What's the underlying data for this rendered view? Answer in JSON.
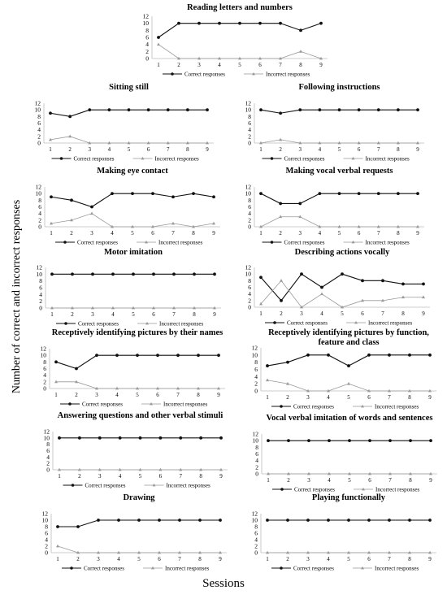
{
  "figure": {
    "y_label": "Number of correct and incorrect responses",
    "x_label": "Sessions"
  },
  "chart_data": [
    {
      "type": "line",
      "title": "Reading letters and numbers",
      "x": [
        1,
        2,
        3,
        4,
        5,
        6,
        7,
        8,
        9
      ],
      "ylim": [
        0,
        12
      ],
      "yticks": [
        0,
        2,
        4,
        6,
        8,
        10,
        12
      ],
      "series": [
        {
          "name": "Correct responses",
          "values": [
            6,
            10,
            10,
            10,
            10,
            10,
            10,
            8,
            10
          ]
        },
        {
          "name": "Incorrect responses",
          "values": [
            4,
            0,
            0,
            0,
            0,
            0,
            0,
            2,
            0
          ]
        }
      ],
      "legend": "bottom"
    },
    {
      "type": "line",
      "title": "Sitting still",
      "x": [
        1,
        2,
        3,
        4,
        5,
        6,
        7,
        8,
        9
      ],
      "ylim": [
        0,
        12
      ],
      "yticks": [
        0,
        2,
        4,
        6,
        8,
        10,
        12
      ],
      "series": [
        {
          "name": "Correct responses",
          "values": [
            9,
            8,
            10,
            10,
            10,
            10,
            10,
            10,
            10
          ]
        },
        {
          "name": "Incorrect responses",
          "values": [
            1,
            2,
            0,
            0,
            0,
            0,
            0,
            0,
            0
          ]
        }
      ],
      "legend": "bottom"
    },
    {
      "type": "line",
      "title": "Following instructions",
      "x": [
        1,
        2,
        3,
        4,
        5,
        6,
        7,
        8,
        9
      ],
      "ylim": [
        0,
        12
      ],
      "yticks": [
        0,
        2,
        4,
        6,
        8,
        10,
        12
      ],
      "series": [
        {
          "name": "Correct responses",
          "values": [
            10,
            9,
            10,
            10,
            10,
            10,
            10,
            10,
            10
          ]
        },
        {
          "name": "Incorrect responses",
          "values": [
            0,
            1,
            0,
            0,
            0,
            0,
            0,
            0,
            0
          ]
        }
      ],
      "legend": "bottom"
    },
    {
      "type": "line",
      "title": "Making eye contact",
      "x": [
        1,
        2,
        3,
        4,
        5,
        6,
        7,
        8,
        9
      ],
      "ylim": [
        0,
        12
      ],
      "yticks": [
        0,
        2,
        4,
        6,
        8,
        10,
        12
      ],
      "series": [
        {
          "name": "Correct responses",
          "values": [
            9,
            8,
            6,
            10,
            10,
            10,
            9,
            10,
            9
          ]
        },
        {
          "name": "Incorrect responses",
          "values": [
            1,
            2,
            4,
            0,
            0,
            0,
            1,
            0,
            1
          ]
        }
      ],
      "legend": "bottom"
    },
    {
      "type": "line",
      "title": "Making vocal verbal requests",
      "x": [
        1,
        2,
        3,
        4,
        5,
        6,
        7,
        8,
        9
      ],
      "ylim": [
        0,
        12
      ],
      "yticks": [
        0,
        2,
        4,
        6,
        8,
        10,
        12
      ],
      "series": [
        {
          "name": "Correct responses",
          "values": [
            10,
            7,
            7,
            10,
            10,
            10,
            10,
            10,
            10
          ]
        },
        {
          "name": "Incorrect responses",
          "values": [
            0,
            3,
            3,
            0,
            0,
            0,
            0,
            0,
            0
          ]
        }
      ],
      "legend": "bottom"
    },
    {
      "type": "line",
      "title": "Motor imitation",
      "x": [
        1,
        2,
        3,
        4,
        5,
        6,
        7,
        8,
        9
      ],
      "ylim": [
        0,
        12
      ],
      "yticks": [
        0,
        2,
        4,
        6,
        8,
        10,
        12
      ],
      "series": [
        {
          "name": "Correct responses",
          "values": [
            10,
            10,
            10,
            10,
            10,
            10,
            10,
            10,
            10
          ]
        },
        {
          "name": "Incorrect responses",
          "values": [
            0,
            0,
            0,
            0,
            0,
            0,
            0,
            0,
            0
          ]
        }
      ],
      "legend": "bottom"
    },
    {
      "type": "line",
      "title": "Describing actions vocally",
      "x": [
        1,
        2,
        3,
        4,
        5,
        6,
        7,
        8,
        9
      ],
      "ylim": [
        0,
        12
      ],
      "yticks": [
        0,
        2,
        4,
        6,
        8,
        10,
        12
      ],
      "series": [
        {
          "name": "Correct responses",
          "values": [
            9,
            2,
            10,
            6,
            10,
            8,
            8,
            7,
            7
          ]
        },
        {
          "name": "Incorrect responses",
          "values": [
            1,
            8,
            0,
            4,
            0,
            2,
            2,
            3,
            3
          ]
        }
      ],
      "legend": "bottom"
    },
    {
      "type": "line",
      "title": "Receptively identifying pictures by their names",
      "x": [
        1,
        2,
        3,
        4,
        5,
        6,
        7,
        8,
        9
      ],
      "ylim": [
        0,
        12
      ],
      "yticks": [
        0,
        2,
        4,
        6,
        8,
        10,
        12
      ],
      "series": [
        {
          "name": "Correct responses",
          "values": [
            8,
            6,
            10,
            10,
            10,
            10,
            10,
            10,
            10
          ]
        },
        {
          "name": "Incorrect responses",
          "values": [
            2,
            2,
            0,
            0,
            0,
            0,
            0,
            0,
            0
          ]
        }
      ],
      "legend": "bottom"
    },
    {
      "type": "line",
      "title": "Receptively identifying pictures by function, feature and class",
      "x": [
        1,
        2,
        3,
        4,
        5,
        6,
        7,
        8,
        9
      ],
      "ylim": [
        0,
        12
      ],
      "yticks": [
        0,
        2,
        4,
        6,
        8,
        10,
        12
      ],
      "series": [
        {
          "name": "Correct responses",
          "values": [
            7,
            8,
            10,
            10,
            7,
            10,
            10,
            10,
            10
          ]
        },
        {
          "name": "Incorrect responses",
          "values": [
            3,
            2,
            0,
            0,
            2,
            0,
            0,
            0,
            0
          ]
        }
      ],
      "legend": "bottom"
    },
    {
      "type": "line",
      "title": "Answering questions and other verbal stimuli",
      "x": [
        1,
        2,
        3,
        4,
        5,
        6,
        7,
        8,
        9
      ],
      "ylim": [
        0,
        12
      ],
      "yticks": [
        0,
        2,
        4,
        6,
        8,
        10,
        12
      ],
      "series": [
        {
          "name": "Correct responses",
          "values": [
            10,
            10,
            10,
            10,
            10,
            10,
            10,
            10,
            10
          ]
        },
        {
          "name": "Incorrect responses",
          "values": [
            0,
            0,
            0,
            0,
            0,
            0,
            0,
            0,
            0
          ]
        }
      ],
      "legend": "bottom"
    },
    {
      "type": "line",
      "title": "Vocal verbal imitation of words and sentences",
      "x": [
        1,
        2,
        3,
        4,
        5,
        6,
        7,
        8,
        9
      ],
      "ylim": [
        0,
        12
      ],
      "yticks": [
        0,
        2,
        4,
        6,
        8,
        10,
        12
      ],
      "series": [
        {
          "name": "Correct responses",
          "values": [
            10,
            10,
            10,
            10,
            10,
            10,
            10,
            10,
            10
          ]
        },
        {
          "name": "Incorrect responses",
          "values": [
            0,
            0,
            0,
            0,
            0,
            0,
            0,
            0,
            0
          ]
        }
      ],
      "legend": "bottom"
    },
    {
      "type": "line",
      "title": "Drawing",
      "x": [
        1,
        2,
        3,
        4,
        5,
        6,
        7,
        8,
        9
      ],
      "ylim": [
        0,
        12
      ],
      "yticks": [
        0,
        2,
        4,
        6,
        8,
        10,
        12
      ],
      "series": [
        {
          "name": "Correct responses",
          "values": [
            8,
            8,
            10,
            10,
            10,
            10,
            10,
            10,
            10
          ]
        },
        {
          "name": "Incorrect responses",
          "values": [
            2,
            0,
            0,
            0,
            0,
            0,
            0,
            0,
            0
          ]
        }
      ],
      "legend": "bottom"
    },
    {
      "type": "line",
      "title": "Playing functionally",
      "x": [
        1,
        2,
        3,
        4,
        5,
        6,
        7,
        8,
        9
      ],
      "ylim": [
        0,
        12
      ],
      "yticks": [
        0,
        2,
        4,
        6,
        8,
        10,
        12
      ],
      "series": [
        {
          "name": "Correct responses",
          "values": [
            10,
            10,
            10,
            10,
            10,
            10,
            10,
            10,
            10
          ]
        },
        {
          "name": "Incorrect responses",
          "values": [
            0,
            0,
            0,
            0,
            0,
            0,
            0,
            0,
            0
          ]
        }
      ],
      "legend": "bottom"
    }
  ]
}
